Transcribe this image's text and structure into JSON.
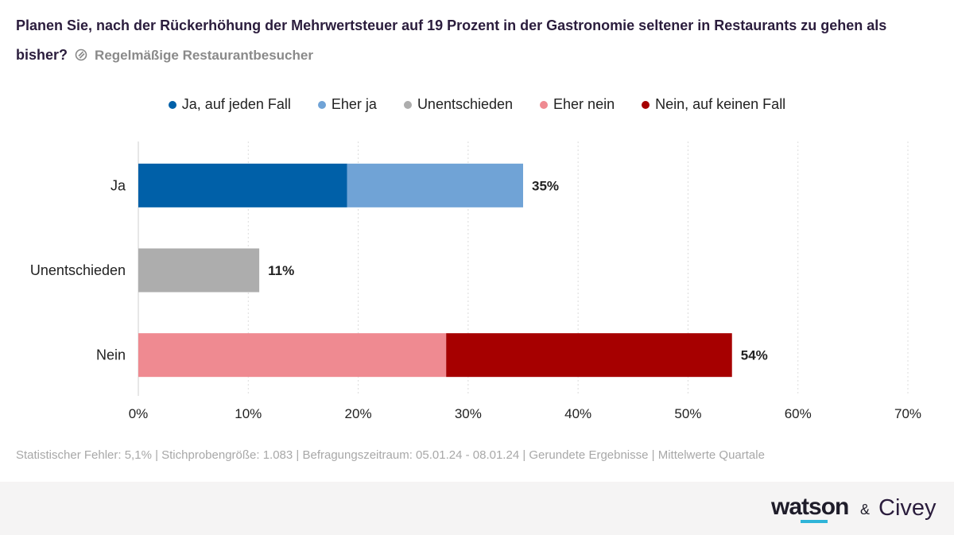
{
  "title": "Planen Sie, nach der Rückerhöhung der Mehrwertsteuer auf 19 Prozent in der Gastronomie seltener in Restaurants zu gehen als bisher?",
  "subtitle": "Regelmäßige Restaurantbesucher",
  "footnote": "Statistischer Fehler: 5,1% | Stichprobengröße: 1.083 | Befragungszeitraum: 05.01.24 - 08.01.24 | Gerundete Ergebnisse | Mittelwerte Quartale",
  "brand": {
    "watson": "watson",
    "amp": "&",
    "civey": "Civey"
  },
  "chart_data": {
    "type": "bar",
    "orientation": "horizontal",
    "stacked": true,
    "title": "Planen Sie, nach der Rückerhöhung der Mehrwertsteuer auf 19 Prozent in der Gastronomie seltener in Restaurants zu gehen als bisher?",
    "subtitle": "Regelmäßige Restaurantbesucher",
    "categories": [
      "Ja",
      "Unentschieden",
      "Nein"
    ],
    "series": [
      {
        "name": "Ja, auf jeden Fall",
        "color": "#0060a8",
        "values": [
          19,
          0,
          0
        ]
      },
      {
        "name": "Eher ja",
        "color": "#70a3d6",
        "values": [
          16,
          0,
          0
        ]
      },
      {
        "name": "Unentschieden",
        "color": "#adadad",
        "values": [
          0,
          11,
          0
        ]
      },
      {
        "name": "Eher nein",
        "color": "#ef8a91",
        "values": [
          0,
          0,
          28
        ]
      },
      {
        "name": "Nein, auf keinen Fall",
        "color": "#a60000",
        "values": [
          0,
          0,
          26
        ]
      }
    ],
    "totals": [
      "35%",
      "11%",
      "54%"
    ],
    "xlim": [
      0,
      70
    ],
    "xticks": [
      "0%",
      "10%",
      "20%",
      "30%",
      "40%",
      "50%",
      "60%",
      "70%"
    ],
    "grid": true,
    "legend_position": "top-center"
  }
}
